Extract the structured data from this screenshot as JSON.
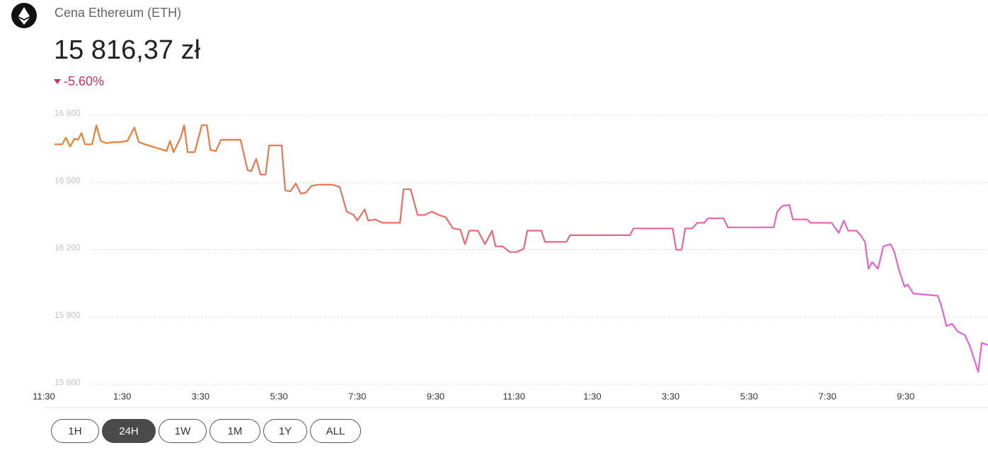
{
  "header": {
    "title": "Cena Ethereum (ETH)",
    "price": "15 816,37 zł",
    "change": "-5.60%"
  },
  "chart_data": {
    "type": "line",
    "x": [
      0.27,
      0.47,
      0.56,
      0.67,
      0.78,
      0.87,
      0.96,
      1.05,
      1.23,
      1.34,
      1.45,
      1.59,
      1.77,
      1.95,
      2.13,
      2.31,
      2.42,
      2.58,
      2.76,
      2.95,
      3.13,
      3.22,
      3.31,
      3.49,
      3.58,
      3.67,
      3.85,
      4.03,
      4.16,
      4.25,
      4.39,
      4.52,
      4.75,
      5.02,
      5.2,
      5.29,
      5.42,
      5.53,
      5.66,
      5.75,
      5.93,
      6.07,
      6.16,
      6.29,
      6.43,
      6.56,
      6.69,
      6.83,
      7.01,
      7.19,
      7.37,
      7.55,
      7.73,
      7.91,
      8.0,
      8.19,
      8.28,
      8.46,
      8.64,
      8.82,
      9.09,
      9.18,
      9.36,
      9.54,
      9.72,
      9.9,
      10.08,
      10.26,
      10.44,
      10.63,
      10.75,
      10.86,
      11.08,
      11.26,
      11.44,
      11.53,
      11.71,
      11.89,
      12.07,
      12.25,
      12.34,
      12.52,
      12.7,
      12.79,
      13.16,
      13.34,
      13.43,
      14.42,
      14.96,
      15.05,
      16.05,
      16.14,
      16.28,
      16.37,
      16.55,
      16.68,
      16.86,
      16.95,
      17.35,
      17.46,
      18.63,
      18.72,
      18.85,
      19.03,
      19.12,
      19.48,
      19.57,
      20.11,
      20.29,
      20.42,
      20.53,
      20.74,
      20.87,
      20.96,
      21.05,
      21.14,
      21.29,
      21.43,
      21.61,
      21.7,
      21.83,
      21.97,
      22.05,
      22.19,
      22.82,
      22.91,
      23.04,
      23.18,
      23.33,
      23.51,
      23.64,
      23.76,
      23.85,
      23.94,
      24.1
    ],
    "values": [
      16670,
      16670,
      16700,
      16660,
      16695,
      16690,
      16720,
      16670,
      16670,
      16755,
      16685,
      16675,
      16680,
      16680,
      16685,
      16745,
      16680,
      16670,
      16660,
      16650,
      16640,
      16685,
      16635,
      16700,
      16755,
      16635,
      16635,
      16755,
      16755,
      16645,
      16640,
      16690,
      16690,
      16690,
      16555,
      16550,
      16605,
      16535,
      16535,
      16665,
      16665,
      16665,
      16465,
      16460,
      16495,
      16450,
      16455,
      16485,
      16490,
      16490,
      16490,
      16480,
      16370,
      16355,
      16330,
      16380,
      16330,
      16335,
      16320,
      16320,
      16320,
      16470,
      16470,
      16355,
      16355,
      16370,
      16355,
      16345,
      16295,
      16290,
      16225,
      16285,
      16285,
      16225,
      16285,
      16215,
      16215,
      16190,
      16190,
      16205,
      16285,
      16285,
      16285,
      16235,
      16235,
      16235,
      16265,
      16265,
      16265,
      16295,
      16295,
      16200,
      16200,
      16295,
      16295,
      16320,
      16320,
      16340,
      16340,
      16300,
      16300,
      16370,
      16395,
      16400,
      16335,
      16335,
      16320,
      16320,
      16275,
      16330,
      16285,
      16285,
      16260,
      16235,
      16115,
      16145,
      16115,
      16215,
      16225,
      16195,
      16110,
      16035,
      16045,
      16005,
      15995,
      15950,
      15860,
      15870,
      15835,
      15820,
      15770,
      15705,
      15655,
      15785,
      15775
    ],
    "gradient": [
      "#e8832a",
      "#e8677a",
      "#e363e0"
    ],
    "xlim": [
      0,
      24.1
    ],
    "ylim": [
      15600,
      16800
    ],
    "xticks": [
      {
        "value": 0,
        "label": "11:30"
      },
      {
        "value": 2,
        "label": "1:30"
      },
      {
        "value": 4,
        "label": "3:30"
      },
      {
        "value": 6,
        "label": "5:30"
      },
      {
        "value": 8,
        "label": "7:30"
      },
      {
        "value": 10,
        "label": "9:30"
      },
      {
        "value": 12,
        "label": "11:30"
      },
      {
        "value": 14,
        "label": "1:30"
      },
      {
        "value": 16,
        "label": "3:30"
      },
      {
        "value": 18,
        "label": "5:30"
      },
      {
        "value": 20,
        "label": "7:30"
      },
      {
        "value": 22,
        "label": "9:30"
      }
    ],
    "yticks": [
      {
        "value": 16800,
        "label": "16 800"
      },
      {
        "value": 16500,
        "label": "16 500"
      },
      {
        "value": 16200,
        "label": "16 200"
      },
      {
        "value": 15900,
        "label": "15 900"
      },
      {
        "value": 15600,
        "label": "15 600"
      }
    ],
    "grid": true
  },
  "ranges": [
    "1H",
    "24H",
    "1W",
    "1M",
    "1Y",
    "ALL"
  ],
  "active_range": 1
}
